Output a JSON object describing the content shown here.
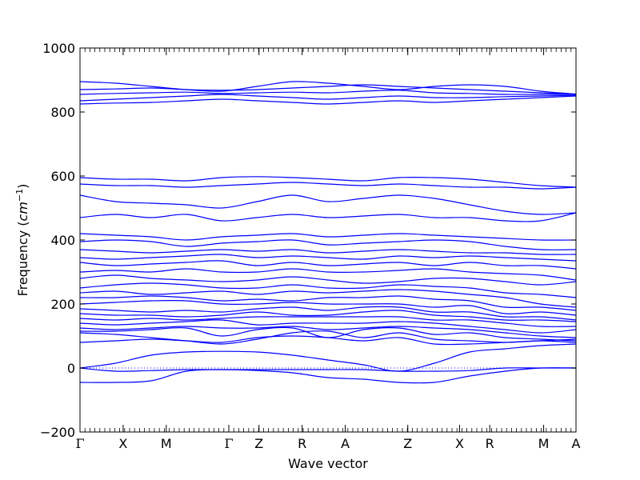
{
  "chart_data": {
    "type": "line",
    "title": "",
    "xlabel": "Wave vector",
    "ylabel": "Frequency",
    "ylabel_unit": "cm",
    "ylabel_unit_exponent": "−1",
    "ylim": [
      -200,
      1000
    ],
    "yticks": [
      -200,
      0,
      200,
      400,
      600,
      800,
      1000
    ],
    "ytick_labels": [
      "−200",
      "0",
      "200",
      "400",
      "600",
      "800",
      "1000"
    ],
    "kpath_xlim": [
      0,
      11.5
    ],
    "kpoints": [
      {
        "label": "Γ",
        "x": 0
      },
      {
        "label": "X",
        "x": 1
      },
      {
        "label": "M",
        "x": 2
      },
      {
        "label": "Γ",
        "x": 3.45
      },
      {
        "label": "Z",
        "x": 4.15
      },
      {
        "label": "R",
        "x": 5.15
      },
      {
        "label": "A",
        "x": 6.15
      },
      {
        "label": "Z",
        "x": 7.6
      },
      {
        "label": "X",
        "x": 8.8
      },
      {
        "label": "R",
        "x": 9.5
      },
      {
        "label": "M",
        "x": 10.75
      },
      {
        "label": "A",
        "x": 11.5
      }
    ],
    "reference_line": {
      "y": 0,
      "style": "dotted"
    },
    "line_color": "#0000ff",
    "bands": [
      [
        -45,
        -45,
        -40,
        -10,
        -5,
        -8,
        -15,
        -30,
        -35,
        -45,
        -45,
        -25,
        -10,
        0,
        0
      ],
      [
        0,
        -10,
        -8,
        -5,
        -5,
        -5,
        -5,
        -5,
        -5,
        -10,
        -10,
        -8,
        0,
        0,
        0
      ],
      [
        0,
        15,
        40,
        50,
        52,
        50,
        40,
        25,
        10,
        -10,
        15,
        50,
        60,
        70,
        75
      ],
      [
        80,
        85,
        90,
        85,
        80,
        95,
        100,
        95,
        85,
        95,
        75,
        75,
        80,
        85,
        90
      ],
      [
        110,
        105,
        95,
        85,
        75,
        90,
        110,
        115,
        95,
        110,
        90,
        85,
        80,
        85,
        80
      ],
      [
        115,
        115,
        120,
        125,
        100,
        120,
        125,
        95,
        120,
        125,
        105,
        110,
        95,
        90,
        85
      ],
      [
        125,
        120,
        125,
        130,
        125,
        125,
        130,
        120,
        125,
        130,
        125,
        120,
        110,
        100,
        95
      ],
      [
        140,
        135,
        140,
        145,
        150,
        135,
        140,
        140,
        140,
        145,
        140,
        130,
        120,
        110,
        120
      ],
      [
        155,
        150,
        155,
        150,
        155,
        160,
        160,
        160,
        160,
        160,
        150,
        150,
        140,
        130,
        130
      ],
      [
        170,
        165,
        165,
        160,
        165,
        175,
        165,
        165,
        175,
        180,
        165,
        160,
        150,
        150,
        145
      ],
      [
        185,
        180,
        175,
        180,
        175,
        185,
        190,
        180,
        190,
        190,
        175,
        175,
        160,
        160,
        150
      ],
      [
        200,
        205,
        210,
        210,
        200,
        200,
        205,
        200,
        200,
        200,
        190,
        195,
        170,
        175,
        165
      ],
      [
        220,
        220,
        225,
        220,
        210,
        215,
        210,
        220,
        220,
        225,
        215,
        210,
        190,
        190,
        180
      ],
      [
        235,
        240,
        230,
        235,
        240,
        230,
        240,
        235,
        240,
        245,
        240,
        230,
        220,
        200,
        190
      ],
      [
        250,
        260,
        265,
        260,
        250,
        250,
        260,
        250,
        250,
        260,
        255,
        250,
        235,
        230,
        220
      ],
      [
        280,
        290,
        280,
        275,
        270,
        275,
        285,
        275,
        265,
        270,
        280,
        280,
        270,
        260,
        270
      ],
      [
        300,
        305,
        300,
        310,
        300,
        300,
        310,
        300,
        300,
        305,
        310,
        300,
        295,
        290,
        275
      ],
      [
        330,
        320,
        325,
        330,
        335,
        320,
        330,
        320,
        325,
        330,
        320,
        330,
        320,
        320,
        310
      ],
      [
        345,
        340,
        345,
        350,
        355,
        345,
        350,
        345,
        340,
        350,
        345,
        350,
        345,
        340,
        335
      ],
      [
        370,
        365,
        360,
        365,
        370,
        365,
        370,
        360,
        365,
        370,
        365,
        360,
        360,
        355,
        355
      ],
      [
        395,
        400,
        395,
        380,
        390,
        395,
        400,
        385,
        390,
        395,
        400,
        395,
        380,
        370,
        370
      ],
      [
        420,
        415,
        410,
        400,
        410,
        415,
        420,
        410,
        415,
        420,
        415,
        410,
        405,
        400,
        400
      ],
      [
        470,
        480,
        470,
        480,
        460,
        470,
        480,
        470,
        475,
        480,
        470,
        470,
        460,
        460,
        485
      ],
      [
        540,
        520,
        515,
        510,
        500,
        520,
        540,
        520,
        530,
        540,
        530,
        510,
        490,
        480,
        485
      ],
      [
        575,
        570,
        570,
        565,
        570,
        575,
        580,
        575,
        570,
        575,
        570,
        565,
        565,
        560,
        565
      ],
      [
        595,
        590,
        590,
        585,
        595,
        598,
        595,
        590,
        585,
        595,
        595,
        590,
        580,
        570,
        565
      ],
      [
        825,
        828,
        830,
        835,
        840,
        835,
        830,
        825,
        830,
        835,
        830,
        835,
        840,
        845,
        850
      ],
      [
        835,
        840,
        845,
        850,
        855,
        850,
        845,
        840,
        845,
        850,
        845,
        845,
        848,
        850,
        852
      ],
      [
        855,
        858,
        860,
        862,
        858,
        860,
        862,
        860,
        865,
        868,
        860,
        858,
        855,
        855,
        855
      ],
      [
        870,
        872,
        875,
        870,
        868,
        870,
        875,
        880,
        885,
        880,
        875,
        870,
        865,
        860,
        855
      ],
      [
        895,
        890,
        880,
        870,
        865,
        880,
        895,
        890,
        880,
        870,
        880,
        885,
        880,
        865,
        856
      ]
    ]
  }
}
